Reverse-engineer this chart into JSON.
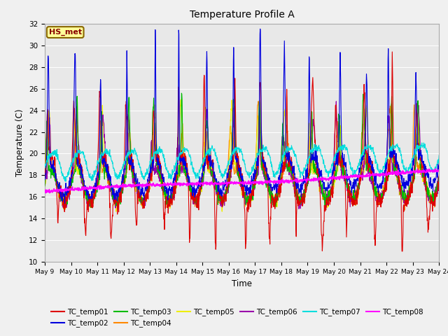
{
  "title": "Temperature Profile A",
  "xlabel": "Time",
  "ylabel": "Temperature (C)",
  "ylim": [
    10,
    32
  ],
  "start_day": 9,
  "end_day": 24,
  "series_colors": {
    "TC_temp01": "#dd0000",
    "TC_temp02": "#0000dd",
    "TC_temp03": "#00bb00",
    "TC_temp04": "#ff8800",
    "TC_temp05": "#eeee00",
    "TC_temp06": "#9900aa",
    "TC_temp07": "#00dddd",
    "TC_temp08": "#ff00ff"
  },
  "legend_label": "HS_met",
  "legend_bg": "#ffff99",
  "legend_border": "#886600",
  "yticks": [
    10,
    12,
    14,
    16,
    18,
    20,
    22,
    24,
    26,
    28,
    30,
    32
  ],
  "xtick_labels": [
    "May 9",
    "May 10",
    "May 11",
    "May 12",
    "May 13",
    "May 14",
    "May 15",
    "May 16",
    "May 17",
    "May 18",
    "May 19",
    "May 20",
    "May 21",
    "May 22",
    "May 23",
    "May 24"
  ],
  "num_points": 1500,
  "fig_bg": "#f0f0f0",
  "plot_bg": "#e8e8e8"
}
